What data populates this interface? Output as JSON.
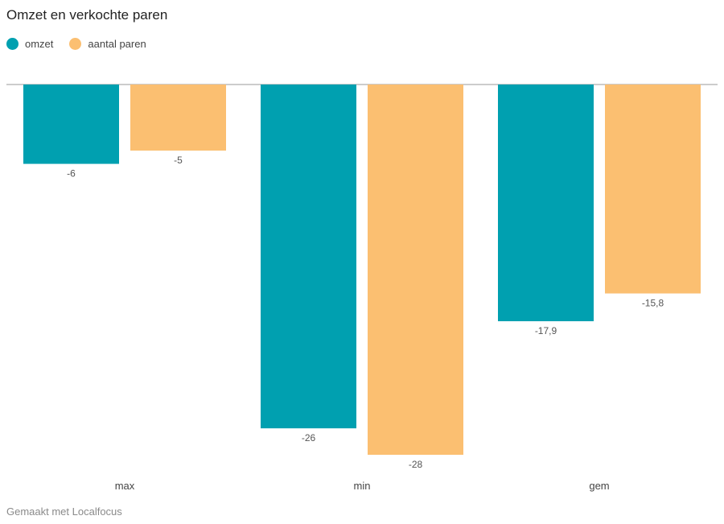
{
  "chart_data": {
    "type": "bar",
    "title": "Omzet en verkochte paren",
    "categories": [
      "max",
      "min",
      "gem"
    ],
    "series": [
      {
        "name": "omzet",
        "color": "#00a0b0",
        "values": [
          -6,
          -26,
          -17.9
        ],
        "labels": [
          "-6",
          "-26",
          "-17,9"
        ]
      },
      {
        "name": "aantal paren",
        "color": "#fbbf71",
        "values": [
          -5,
          -28,
          -15.8
        ],
        "labels": [
          "-5",
          "-28",
          "-15,8"
        ]
      }
    ],
    "ylim": [
      -28,
      0
    ],
    "legend": "top-left",
    "grid": false
  },
  "footer": "Gemaakt met Localfocus"
}
